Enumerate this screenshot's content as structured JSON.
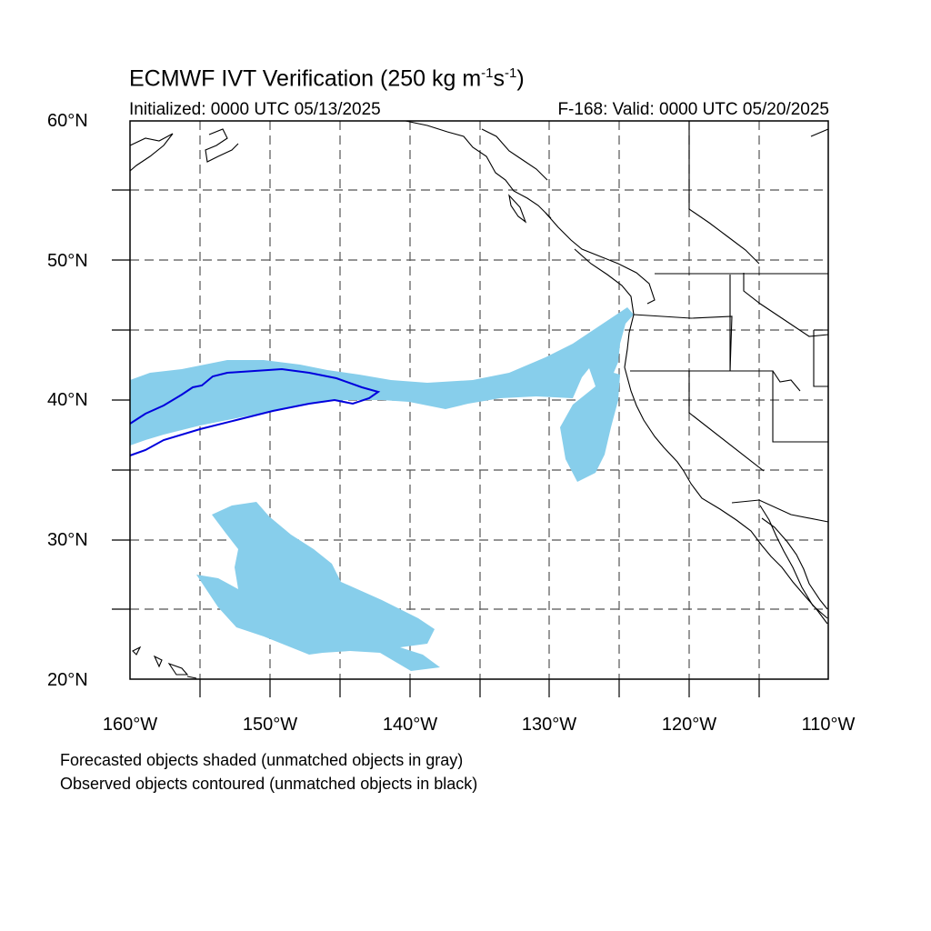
{
  "header": {
    "title_main": "ECMWF IVT Verification (250 kg m",
    "title_sup1": "-1",
    "title_mid": "s",
    "title_sup2": "-1",
    "title_end": ")",
    "initialized": "Initialized: 0000 UTC 05/13/2025",
    "valid": "F-168: Valid: 0000 UTC 05/20/2025"
  },
  "axes": {
    "lat_labels": [
      "60°N",
      "50°N",
      "40°N",
      "30°N",
      "20°N"
    ],
    "lon_labels": [
      "160°W",
      "150°W",
      "140°W",
      "130°W",
      "120°W",
      "110°W"
    ],
    "lon_range": [
      -160,
      -110
    ],
    "lat_range": [
      20,
      60
    ],
    "grid": "dashed 5° lines",
    "projection": "cylindrical equidistant"
  },
  "legend": {
    "line1": "Forecasted objects shaded (unmatched objects in gray)",
    "line2": "Observed objects contoured (unmatched objects in black)"
  },
  "colors": {
    "forecast_fill": "#87ceeb",
    "observed_contour": "#0000dd",
    "coastline": "#000000",
    "grid": "#555555"
  }
}
